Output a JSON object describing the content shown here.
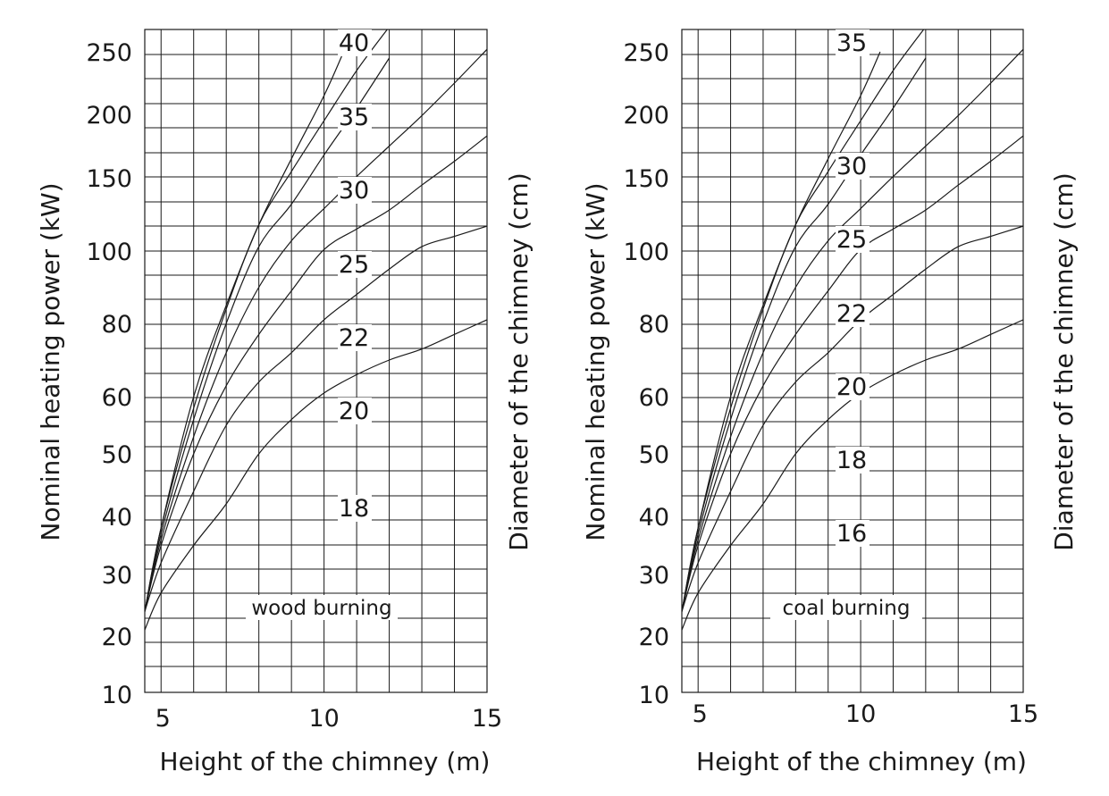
{
  "chart_data": [
    {
      "type": "line",
      "title": "",
      "annotation": "wood burning",
      "xlabel": "Height of the chimney (m)",
      "ylabel": "Nominal heating power (kW)",
      "y2label": "Diameter of the chimney (cm)",
      "xlim": [
        4.5,
        15
      ],
      "x_ticks": [
        5,
        10,
        15
      ],
      "y_tick_labels": [
        "250",
        "200",
        "150",
        "100",
        "80",
        "60",
        "50",
        "40",
        "30",
        "20",
        "10"
      ],
      "grid": true,
      "legend": "none",
      "series": [
        {
          "name": "18",
          "x": [
            4.5,
            5,
            6,
            7,
            8,
            9,
            10,
            11,
            12,
            13,
            14,
            15
          ],
          "y": [
            21,
            27,
            35,
            42,
            50,
            56,
            61,
            66,
            70,
            73,
            77,
            81
          ]
        },
        {
          "name": "20",
          "x": [
            4.5,
            5,
            6,
            7,
            8,
            9,
            10,
            11,
            12,
            13,
            14,
            15
          ],
          "y": [
            24,
            32,
            44,
            55,
            64,
            72,
            81,
            88,
            95,
            103,
            110,
            117
          ]
        },
        {
          "name": "22",
          "x": [
            4.5,
            5,
            6,
            7,
            8,
            9,
            10,
            11,
            12,
            13,
            14,
            15
          ],
          "y": [
            24,
            35,
            50,
            63,
            77,
            89,
            101,
            115,
            128,
            145,
            163,
            183
          ]
        },
        {
          "name": "25",
          "x": [
            4.5,
            5,
            6,
            7,
            8,
            9,
            10,
            11,
            12,
            13,
            14,
            15
          ],
          "y": [
            24,
            36,
            53,
            72,
            90,
            107,
            129,
            151,
            175,
            199,
            225,
            252
          ]
        },
        {
          "name": "30",
          "x": [
            4.5,
            5,
            6,
            7,
            8,
            9,
            10,
            11,
            12
          ],
          "y": [
            24,
            37,
            56,
            80,
            103,
            132,
            168,
            205,
            245
          ]
        },
        {
          "name": "35",
          "x": [
            4.5,
            5,
            6,
            7,
            8,
            9,
            10,
            11,
            12
          ],
          "y": [
            24,
            38,
            58,
            84,
            118,
            155,
            195,
            235,
            270
          ]
        },
        {
          "name": "40",
          "x": [
            4.5,
            5,
            6,
            7,
            8,
            9,
            10,
            10.6
          ],
          "y": [
            24,
            38,
            60,
            85,
            118,
            165,
            215,
            250
          ]
        }
      ]
    },
    {
      "type": "line",
      "title": "",
      "annotation": "coal burning",
      "xlabel": "Height of the chimney (m)",
      "ylabel": "Nominal heating power (kW)",
      "y2label": "Diameter of the chimney (cm)",
      "xlim": [
        4.5,
        15
      ],
      "x_ticks": [
        5,
        10,
        15
      ],
      "y_tick_labels": [
        "250",
        "200",
        "150",
        "100",
        "80",
        "60",
        "50",
        "40",
        "30",
        "20",
        "10"
      ],
      "grid": true,
      "legend": "none",
      "series": [
        {
          "name": "16",
          "x": [
            4.5,
            5,
            6,
            7,
            8,
            9,
            10,
            11,
            12,
            13,
            14,
            15
          ],
          "y": [
            21,
            27,
            35,
            42,
            50,
            56,
            61,
            66,
            70,
            73,
            77,
            81
          ]
        },
        {
          "name": "18",
          "x": [
            4.5,
            5,
            6,
            7,
            8,
            9,
            10,
            11,
            12,
            13,
            14,
            15
          ],
          "y": [
            24,
            32,
            44,
            55,
            64,
            72,
            81,
            88,
            95,
            103,
            110,
            117
          ]
        },
        {
          "name": "20",
          "x": [
            4.5,
            5,
            6,
            7,
            8,
            9,
            10,
            11,
            12,
            13,
            14,
            15
          ],
          "y": [
            24,
            35,
            50,
            63,
            77,
            89,
            101,
            115,
            128,
            145,
            163,
            183
          ]
        },
        {
          "name": "22",
          "x": [
            4.5,
            5,
            6,
            7,
            8,
            9,
            10,
            11,
            12,
            13,
            14,
            15
          ],
          "y": [
            24,
            36,
            53,
            72,
            90,
            107,
            129,
            151,
            175,
            199,
            225,
            252
          ]
        },
        {
          "name": "25",
          "x": [
            4.5,
            5,
            6,
            7,
            8,
            9,
            10,
            11,
            12
          ],
          "y": [
            24,
            37,
            56,
            80,
            103,
            132,
            168,
            205,
            245
          ]
        },
        {
          "name": "30",
          "x": [
            4.5,
            5,
            6,
            7,
            8,
            9,
            10,
            11,
            12
          ],
          "y": [
            24,
            38,
            58,
            84,
            118,
            155,
            195,
            235,
            270
          ]
        },
        {
          "name": "35",
          "x": [
            4.5,
            5,
            6,
            7,
            8,
            9,
            10,
            10.6
          ],
          "y": [
            24,
            38,
            60,
            85,
            118,
            165,
            215,
            250
          ]
        }
      ]
    }
  ]
}
